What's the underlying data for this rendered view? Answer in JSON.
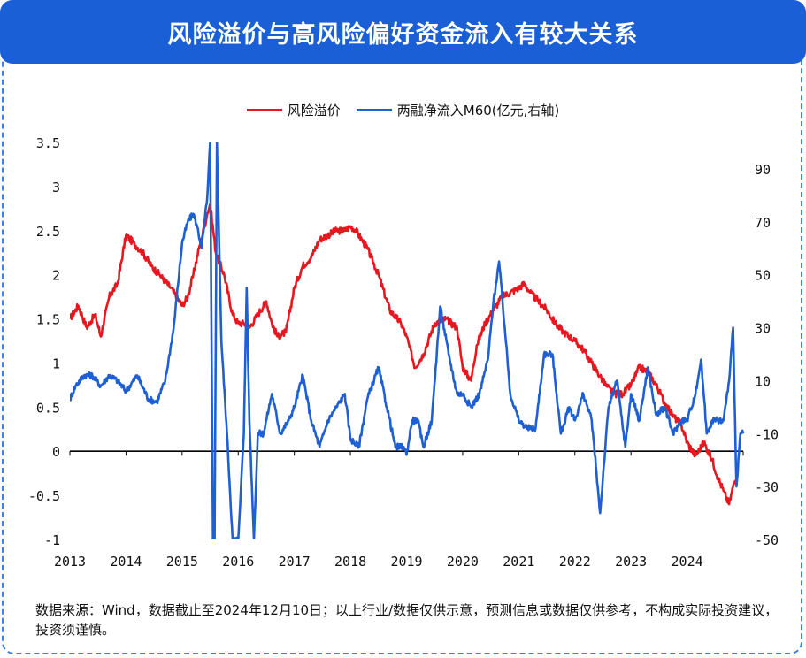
{
  "header": {
    "title": "风险溢价与高风险偏好资金流入有较大关系"
  },
  "legend": [
    {
      "label": "风险溢价",
      "color": "#e8161e"
    },
    {
      "label": "两融净流入M60(亿元,右轴)",
      "color": "#1f5fd4"
    }
  ],
  "footnote": "数据来源：Wind，数据截止至2024年12月10日；以上行业/数据仅供示意，预测信息或数据仅供参考，不构成实际投资建议，投资须谨慎。",
  "chart_data": {
    "type": "line",
    "title": "风险溢价与高风险偏好资金流入有较大关系",
    "x_tick_labels": [
      "2013",
      "2014",
      "2015",
      "2016",
      "2017",
      "2018",
      "2019",
      "2020",
      "2021",
      "2022",
      "2023",
      "2024"
    ],
    "x_range": [
      2013.0,
      2025.0
    ],
    "y_left": {
      "range": [
        -1,
        3.5
      ],
      "ticks": [
        -1,
        -0.5,
        0,
        0.5,
        1,
        1.5,
        2,
        2.5,
        3,
        3.5
      ],
      "tick_labels": [
        "-1",
        "-0.5",
        "0",
        "0.5",
        "1",
        "1.5",
        "2",
        "2.5",
        "3",
        "3.5"
      ]
    },
    "y_right": {
      "range": [
        -50,
        100
      ],
      "ticks": [
        -50,
        -30,
        -10,
        10,
        30,
        50,
        70,
        90
      ],
      "tick_labels": [
        "-50",
        "-30",
        "-10",
        "10",
        "30",
        "50",
        "70",
        "90"
      ]
    },
    "series": [
      {
        "name": "风险溢价",
        "axis": "left",
        "color": "#e8161e",
        "x": [
          2013.0,
          2013.15,
          2013.3,
          2013.45,
          2013.55,
          2013.7,
          2013.85,
          2014.0,
          2014.15,
          2014.3,
          2014.45,
          2014.6,
          2014.8,
          2015.0,
          2015.1,
          2015.2,
          2015.3,
          2015.4,
          2015.45,
          2015.5,
          2015.6,
          2015.75,
          2015.9,
          2016.0,
          2016.1,
          2016.2,
          2016.35,
          2016.5,
          2016.6,
          2016.7,
          2016.85,
          2017.0,
          2017.15,
          2017.3,
          2017.45,
          2017.6,
          2017.75,
          2017.9,
          2018.0,
          2018.1,
          2018.2,
          2018.3,
          2018.5,
          2018.7,
          2018.9,
          2019.0,
          2019.15,
          2019.3,
          2019.5,
          2019.7,
          2019.9,
          2020.0,
          2020.15,
          2020.25,
          2020.4,
          2020.55,
          2020.7,
          2020.85,
          2021.0,
          2021.1,
          2021.2,
          2021.35,
          2021.5,
          2021.65,
          2021.8,
          2022.0,
          2022.15,
          2022.3,
          2022.45,
          2022.55,
          2022.7,
          2022.85,
          2023.0,
          2023.15,
          2023.3,
          2023.45,
          2023.6,
          2023.75,
          2023.9,
          2024.0,
          2024.15,
          2024.3,
          2024.45,
          2024.55,
          2024.65,
          2024.75,
          2024.82,
          2024.9
        ],
        "y": [
          1.5,
          1.65,
          1.4,
          1.55,
          1.3,
          1.75,
          1.9,
          2.45,
          2.35,
          2.25,
          2.1,
          2.0,
          1.85,
          1.65,
          1.75,
          2.0,
          2.3,
          2.55,
          2.7,
          2.8,
          2.25,
          2.0,
          1.55,
          1.45,
          1.45,
          1.4,
          1.55,
          1.7,
          1.45,
          1.3,
          1.35,
          1.85,
          2.1,
          2.2,
          2.4,
          2.45,
          2.5,
          2.5,
          2.55,
          2.5,
          2.4,
          2.3,
          2.0,
          1.6,
          1.45,
          1.3,
          0.95,
          1.1,
          1.45,
          1.5,
          1.4,
          0.95,
          0.8,
          1.2,
          1.45,
          1.6,
          1.75,
          1.8,
          1.85,
          1.9,
          1.8,
          1.7,
          1.6,
          1.45,
          1.35,
          1.25,
          1.15,
          1.0,
          0.85,
          0.75,
          0.65,
          0.65,
          0.75,
          0.95,
          0.9,
          0.75,
          0.55,
          0.4,
          0.3,
          0.1,
          -0.05,
          0.1,
          -0.1,
          -0.3,
          -0.45,
          -0.6,
          -0.4,
          -0.25
        ]
      },
      {
        "name": "两融净流入M60(亿元,右轴)",
        "axis": "right",
        "color": "#1f5fd4",
        "x": [
          2013.0,
          2013.1,
          2013.25,
          2013.4,
          2013.55,
          2013.7,
          2013.85,
          2014.0,
          2014.2,
          2014.4,
          2014.55,
          2014.7,
          2014.85,
          2015.0,
          2015.1,
          2015.2,
          2015.27,
          2015.35,
          2015.45,
          2015.5,
          2015.55,
          2015.58,
          2015.62,
          2015.7,
          2015.8,
          2015.9,
          2016.0,
          2016.05,
          2016.1,
          2016.15,
          2016.2,
          2016.28,
          2016.35,
          2016.45,
          2016.6,
          2016.75,
          2016.9,
          2017.0,
          2017.15,
          2017.3,
          2017.45,
          2017.6,
          2017.75,
          2017.9,
          2018.0,
          2018.15,
          2018.3,
          2018.5,
          2018.65,
          2018.8,
          2018.95,
          2019.0,
          2019.1,
          2019.2,
          2019.3,
          2019.45,
          2019.6,
          2019.75,
          2019.9,
          2020.0,
          2020.15,
          2020.3,
          2020.45,
          2020.55,
          2020.65,
          2020.75,
          2020.85,
          2021.0,
          2021.15,
          2021.3,
          2021.45,
          2021.6,
          2021.75,
          2021.9,
          2022.0,
          2022.15,
          2022.3,
          2022.45,
          2022.6,
          2022.75,
          2022.9,
          2023.0,
          2023.15,
          2023.3,
          2023.45,
          2023.6,
          2023.75,
          2023.9,
          2024.0,
          2024.15,
          2024.25,
          2024.35,
          2024.45,
          2024.55,
          2024.65,
          2024.75,
          2024.82,
          2024.88,
          2024.95,
          2025.0
        ],
        "y": [
          3,
          8,
          12,
          12,
          8,
          12,
          10,
          6,
          12,
          3,
          2,
          10,
          30,
          62,
          70,
          73,
          68,
          60,
          80,
          100,
          -50,
          -50,
          100,
          25,
          -10,
          -50,
          -50,
          -30,
          -10,
          45,
          -5,
          -50,
          -10,
          -10,
          5,
          -10,
          -5,
          0,
          12,
          -5,
          -15,
          -5,
          0,
          5,
          -12,
          -15,
          3,
          15,
          0,
          -15,
          -15,
          -18,
          -5,
          -5,
          -15,
          -5,
          38,
          20,
          5,
          5,
          0,
          5,
          18,
          40,
          55,
          30,
          5,
          -5,
          -8,
          -8,
          20,
          20,
          -10,
          0,
          -5,
          5,
          -5,
          -40,
          0,
          10,
          -15,
          5,
          -5,
          15,
          -3,
          0,
          -10,
          -5,
          -5,
          5,
          18,
          -10,
          -5,
          -5,
          -5,
          10,
          30,
          -30,
          -10,
          -10
        ]
      }
    ]
  }
}
